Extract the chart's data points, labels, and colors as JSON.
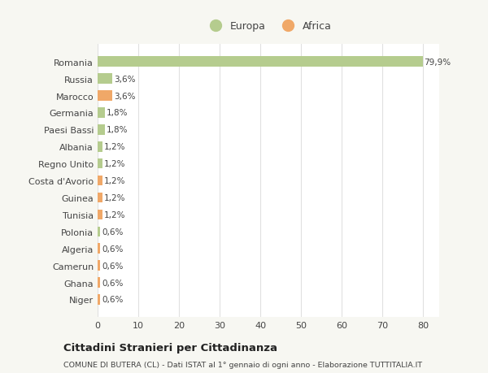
{
  "countries": [
    "Romania",
    "Russia",
    "Marocco",
    "Germania",
    "Paesi Bassi",
    "Albania",
    "Regno Unito",
    "Costa d'Avorio",
    "Guinea",
    "Tunisia",
    "Polonia",
    "Algeria",
    "Camerun",
    "Ghana",
    "Niger"
  ],
  "values": [
    79.9,
    3.6,
    3.6,
    1.8,
    1.8,
    1.2,
    1.2,
    1.2,
    1.2,
    1.2,
    0.6,
    0.6,
    0.6,
    0.6,
    0.6
  ],
  "labels": [
    "79,9%",
    "3,6%",
    "3,6%",
    "1,8%",
    "1,8%",
    "1,2%",
    "1,2%",
    "1,2%",
    "1,2%",
    "1,2%",
    "0,6%",
    "0,6%",
    "0,6%",
    "0,6%",
    "0,6%"
  ],
  "continents": [
    "Europa",
    "Europa",
    "Africa",
    "Europa",
    "Europa",
    "Europa",
    "Europa",
    "Africa",
    "Africa",
    "Africa",
    "Europa",
    "Africa",
    "Africa",
    "Africa",
    "Africa"
  ],
  "europa_color": "#b5cc8e",
  "africa_color": "#f0a868",
  "background_color": "#f7f7f2",
  "plot_bg_color": "#ffffff",
  "grid_color": "#e0e0e0",
  "text_color": "#444444",
  "title": "Cittadini Stranieri per Cittadinanza",
  "subtitle": "COMUNE DI BUTERA (CL) - Dati ISTAT al 1° gennaio di ogni anno - Elaborazione TUTTITALIA.IT",
  "xlim": [
    0,
    84
  ],
  "xticks": [
    0,
    10,
    20,
    30,
    40,
    50,
    60,
    70,
    80
  ],
  "legend_europa": "Europa",
  "legend_africa": "Africa"
}
